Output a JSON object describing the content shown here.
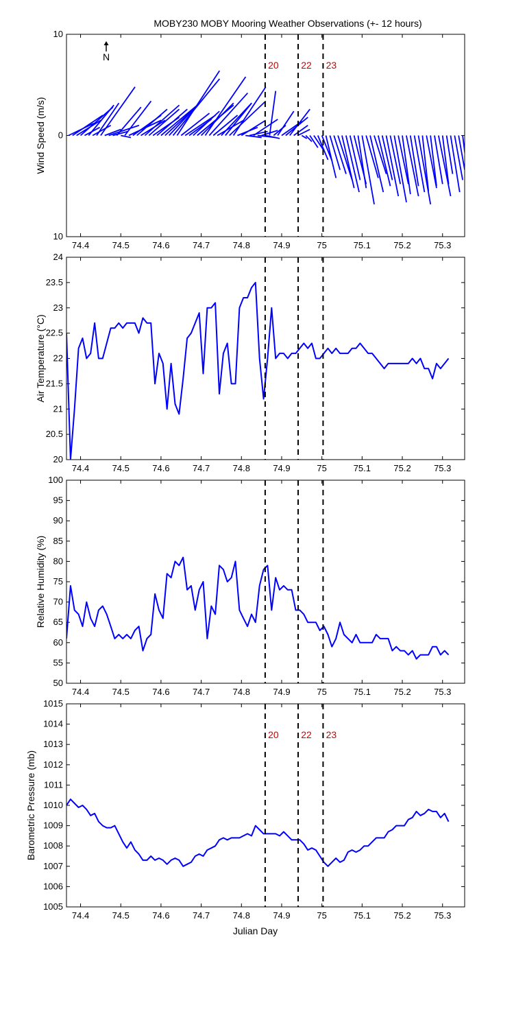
{
  "title": "MOBY230 MOBY Mooring Weather Observations (+- 12 hours)",
  "colors": {
    "series": "#0000ff",
    "marker_label": "#cc0000",
    "axis": "#000000",
    "background": "#ffffff"
  },
  "chart_data": [
    {
      "id": "wind",
      "type": "quiver",
      "title": "MOBY230 MOBY Mooring Weather Observations (+- 12 hours)",
      "xlabel": "",
      "ylabel": "Wind Speed (m/s)",
      "north_label": "N",
      "xlim": [
        74.365,
        75.355
      ],
      "ylim": [
        -10,
        10
      ],
      "x_ticks": [
        "74.4",
        "74.5",
        "74.6",
        "74.7",
        "74.8",
        "74.9",
        "75",
        "75.1",
        "75.2",
        "75.3"
      ],
      "y_ticks": [
        "10",
        "0",
        "10"
      ],
      "markers": [
        {
          "x": 74.859,
          "label": "20"
        },
        {
          "x": 74.941,
          "label": "22"
        },
        {
          "x": 75.003,
          "label": "23"
        }
      ],
      "vectors": [
        [
          74.37,
          2.5,
          1.2
        ],
        [
          74.38,
          3.0,
          2.0
        ],
        [
          74.39,
          2.4,
          1.5
        ],
        [
          74.4,
          3.2,
          2.8
        ],
        [
          74.41,
          1.5,
          0.8
        ],
        [
          74.42,
          2.5,
          3.0
        ],
        [
          74.43,
          1.8,
          1.0
        ],
        [
          74.44,
          2.2,
          3.2
        ],
        [
          74.45,
          3.4,
          4.8
        ],
        [
          74.46,
          1.6,
          0.6
        ],
        [
          74.47,
          3.0,
          1.0
        ],
        [
          74.48,
          1.5,
          0.4
        ],
        [
          74.49,
          2.4,
          2.8
        ],
        [
          74.5,
          1.0,
          -0.2
        ],
        [
          74.51,
          2.6,
          3.4
        ],
        [
          74.52,
          3.2,
          1.5
        ],
        [
          74.53,
          2.8,
          2.0
        ],
        [
          74.54,
          3.0,
          2.6
        ],
        [
          74.55,
          2.4,
          1.5
        ],
        [
          74.56,
          3.4,
          3.0
        ],
        [
          74.57,
          3.0,
          2.6
        ],
        [
          74.58,
          2.6,
          1.8
        ],
        [
          74.59,
          3.0,
          2.6
        ],
        [
          74.6,
          3.6,
          3.0
        ],
        [
          74.61,
          2.6,
          2.4
        ],
        [
          74.62,
          3.0,
          3.2
        ],
        [
          74.63,
          4.6,
          5.6
        ],
        [
          74.64,
          4.2,
          6.4
        ],
        [
          74.65,
          2.8,
          2.2
        ],
        [
          74.66,
          3.0,
          2.0
        ],
        [
          74.67,
          2.2,
          1.6
        ],
        [
          74.68,
          2.6,
          2.4
        ],
        [
          74.69,
          3.6,
          3.0
        ],
        [
          74.7,
          3.2,
          3.2
        ],
        [
          74.71,
          4.0,
          5.8
        ],
        [
          74.72,
          3.8,
          4.2
        ],
        [
          74.73,
          2.4,
          2.0
        ],
        [
          74.74,
          2.6,
          1.5
        ],
        [
          74.75,
          3.0,
          3.2
        ],
        [
          74.76,
          2.6,
          3.2
        ],
        [
          74.77,
          3.6,
          3.4
        ],
        [
          74.78,
          3.2,
          4.8
        ],
        [
          74.79,
          2.0,
          0.8
        ],
        [
          74.8,
          2.4,
          1.5
        ],
        [
          74.81,
          1.6,
          -0.2
        ],
        [
          74.82,
          1.8,
          0.4
        ],
        [
          74.83,
          2.4,
          1.6
        ],
        [
          74.84,
          1.8,
          -0.2
        ],
        [
          74.85,
          1.6,
          0.5
        ],
        [
          74.86,
          1.4,
          -0.3
        ],
        [
          74.87,
          0.6,
          4.4
        ],
        [
          74.88,
          1.2,
          1.0
        ],
        [
          74.89,
          1.6,
          2.4
        ],
        [
          74.9,
          2.0,
          1.4
        ],
        [
          74.91,
          2.2,
          1.8
        ],
        [
          74.92,
          2.0,
          2.6
        ],
        [
          74.93,
          1.4,
          1.0
        ],
        [
          74.94,
          1.2,
          0.6
        ],
        [
          74.95,
          0.5,
          -0.3
        ],
        [
          74.96,
          0.6,
          -0.6
        ],
        [
          74.97,
          0.8,
          -1.2
        ],
        [
          74.98,
          1.0,
          -1.5
        ],
        [
          74.99,
          1.0,
          -2.4
        ],
        [
          75.0,
          1.0,
          -2.5
        ],
        [
          75.01,
          1.0,
          -4.2
        ],
        [
          75.02,
          1.0,
          -3.4
        ],
        [
          75.03,
          1.2,
          -3.8
        ],
        [
          75.04,
          1.4,
          -4.4
        ],
        [
          75.05,
          1.2,
          -5.2
        ],
        [
          75.06,
          1.3,
          -5.6
        ],
        [
          75.07,
          1.0,
          -4.4
        ],
        [
          75.08,
          1.2,
          -4.8
        ],
        [
          75.09,
          0.8,
          -5.2
        ],
        [
          75.1,
          1.2,
          -6.8
        ],
        [
          75.11,
          1.2,
          -4.2
        ],
        [
          75.12,
          1.3,
          -5.6
        ],
        [
          75.13,
          1.2,
          -3.8
        ],
        [
          75.14,
          1.2,
          -5.0
        ],
        [
          75.15,
          1.0,
          -4.4
        ],
        [
          75.16,
          1.2,
          -6.0
        ],
        [
          75.17,
          1.0,
          -4.8
        ],
        [
          75.18,
          1.2,
          -6.6
        ],
        [
          75.19,
          1.0,
          -4.8
        ],
        [
          75.2,
          0.8,
          -5.8
        ],
        [
          75.21,
          1.2,
          -6.0
        ],
        [
          75.22,
          0.8,
          -5.0
        ],
        [
          75.23,
          1.0,
          -5.6
        ],
        [
          75.24,
          1.2,
          -6.8
        ],
        [
          75.25,
          0.6,
          -5.5
        ],
        [
          75.26,
          1.0,
          -5.2
        ],
        [
          75.27,
          0.6,
          -5.0
        ],
        [
          75.28,
          0.8,
          -4.8
        ],
        [
          75.29,
          1.2,
          -6.0
        ],
        [
          75.3,
          0.6,
          -4.8
        ],
        [
          75.31,
          0.6,
          -3.8
        ],
        [
          75.32,
          0.9,
          -5.6
        ],
        [
          75.33,
          0.8,
          -4.4
        ],
        [
          75.34,
          0.6,
          -3.4
        ],
        [
          75.35,
          0.6,
          -4.8
        ]
      ]
    },
    {
      "id": "airtemp",
      "type": "line",
      "title": "",
      "xlabel": "",
      "ylabel": "Air Temperature (°C)",
      "xlim": [
        74.365,
        75.355
      ],
      "ylim": [
        20,
        24
      ],
      "x_ticks": [
        "74.4",
        "74.5",
        "74.6",
        "74.7",
        "74.8",
        "74.9",
        "75",
        "75.1",
        "75.2",
        "75.3"
      ],
      "y_ticks": [
        "20",
        "20.5",
        "21",
        "21.5",
        "22",
        "22.5",
        "23",
        "23.5",
        "24"
      ],
      "markers": [
        {
          "x": 74.859,
          "label": ""
        },
        {
          "x": 74.941,
          "label": ""
        },
        {
          "x": 75.003,
          "label": ""
        }
      ],
      "series": [
        {
          "x_start": 74.365,
          "dx": 0.01,
          "values": [
            22.5,
            20.0,
            21.0,
            22.2,
            22.4,
            22.0,
            22.1,
            22.7,
            22.0,
            22.0,
            22.3,
            22.6,
            22.6,
            22.7,
            22.6,
            22.7,
            22.7,
            22.7,
            22.5,
            22.8,
            22.7,
            22.7,
            21.5,
            22.1,
            21.9,
            21.0,
            21.9,
            21.1,
            20.9,
            21.6,
            22.4,
            22.5,
            22.7,
            22.9,
            21.7,
            23.0,
            23.0,
            23.1,
            21.3,
            22.1,
            22.3,
            21.5,
            21.5,
            23.0,
            23.2,
            23.2,
            23.4,
            23.5,
            22.0,
            21.2,
            22.0,
            23.0,
            22.0,
            22.1,
            22.1,
            22.0,
            22.1,
            22.1,
            22.2,
            22.3,
            22.2,
            22.3,
            22.0,
            22.0,
            22.1,
            22.2,
            22.1,
            22.2,
            22.1,
            22.1,
            22.1,
            22.2,
            22.2,
            22.3,
            22.2,
            22.1,
            22.1,
            22.0,
            21.9,
            21.8,
            21.9,
            21.9,
            21.9,
            21.9,
            21.9,
            21.9,
            22.0,
            21.9,
            22.0,
            21.8,
            21.8,
            21.6,
            21.9,
            21.8,
            21.9,
            22.0
          ]
        }
      ]
    },
    {
      "id": "rh",
      "type": "line",
      "title": "",
      "xlabel": "",
      "ylabel": "Relative Humidity (%)",
      "xlim": [
        74.365,
        75.355
      ],
      "ylim": [
        50,
        100
      ],
      "x_ticks": [
        "74.4",
        "74.5",
        "74.6",
        "74.7",
        "74.8",
        "74.9",
        "75",
        "75.1",
        "75.2",
        "75.3"
      ],
      "y_ticks": [
        "50",
        "55",
        "60",
        "65",
        "70",
        "75",
        "80",
        "85",
        "90",
        "95",
        "100"
      ],
      "markers": [
        {
          "x": 74.859,
          "label": ""
        },
        {
          "x": 74.941,
          "label": ""
        },
        {
          "x": 75.003,
          "label": ""
        }
      ],
      "series": [
        {
          "x_start": 74.365,
          "dx": 0.01,
          "values": [
            61,
            74,
            68,
            67,
            64,
            70,
            66,
            64,
            68,
            69,
            67,
            64,
            61,
            62,
            61,
            62,
            61,
            63,
            64,
            58,
            61,
            62,
            72,
            68,
            66,
            77,
            76,
            80,
            79,
            81,
            73,
            74,
            68,
            73,
            75,
            61,
            69,
            67,
            79,
            78,
            75,
            76,
            80,
            68,
            66,
            64,
            67,
            65,
            74,
            78,
            79,
            68,
            76,
            73,
            74,
            73,
            73,
            68,
            68,
            67,
            65,
            65,
            65,
            63,
            64,
            62,
            59,
            61,
            65,
            62,
            61,
            60,
            62,
            60,
            60,
            60,
            60,
            62,
            61,
            61,
            61,
            58,
            59,
            58,
            58,
            57,
            58,
            56,
            57,
            57,
            57,
            59,
            59,
            57,
            58,
            57
          ]
        }
      ]
    },
    {
      "id": "baro",
      "type": "line",
      "title": "",
      "xlabel": "Julian Day",
      "ylabel": "Barometric Pressure (mb)",
      "xlim": [
        74.365,
        75.355
      ],
      "ylim": [
        1005,
        1015
      ],
      "x_ticks": [
        "74.4",
        "74.5",
        "74.6",
        "74.7",
        "74.8",
        "74.9",
        "75",
        "75.1",
        "75.2",
        "75.3"
      ],
      "y_ticks": [
        "1005",
        "1006",
        "1007",
        "1008",
        "1009",
        "1010",
        "1011",
        "1012",
        "1013",
        "1014",
        "1015"
      ],
      "markers": [
        {
          "x": 74.859,
          "label": "20"
        },
        {
          "x": 74.941,
          "label": "22"
        },
        {
          "x": 75.003,
          "label": "23"
        }
      ],
      "series": [
        {
          "x_start": 74.365,
          "dx": 0.01,
          "values": [
            1010.0,
            1010.3,
            1010.1,
            1009.9,
            1010.0,
            1009.8,
            1009.5,
            1009.6,
            1009.2,
            1009.0,
            1008.9,
            1008.9,
            1009.0,
            1008.6,
            1008.2,
            1007.9,
            1008.2,
            1007.8,
            1007.6,
            1007.3,
            1007.3,
            1007.5,
            1007.3,
            1007.4,
            1007.3,
            1007.1,
            1007.3,
            1007.4,
            1007.3,
            1007.0,
            1007.1,
            1007.2,
            1007.5,
            1007.6,
            1007.5,
            1007.8,
            1007.9,
            1008.0,
            1008.3,
            1008.4,
            1008.3,
            1008.4,
            1008.4,
            1008.4,
            1008.5,
            1008.6,
            1008.5,
            1009.0,
            1008.8,
            1008.6,
            1008.6,
            1008.6,
            1008.6,
            1008.5,
            1008.7,
            1008.5,
            1008.3,
            1008.3,
            1008.3,
            1008.1,
            1007.8,
            1007.9,
            1007.8,
            1007.5,
            1007.2,
            1007.0,
            1007.2,
            1007.4,
            1007.2,
            1007.3,
            1007.7,
            1007.8,
            1007.7,
            1007.8,
            1008.0,
            1008.0,
            1008.2,
            1008.4,
            1008.4,
            1008.4,
            1008.7,
            1008.8,
            1009.0,
            1009.0,
            1009.0,
            1009.3,
            1009.4,
            1009.7,
            1009.5,
            1009.6,
            1009.8,
            1009.7,
            1009.7,
            1009.4,
            1009.6,
            1009.2
          ]
        }
      ]
    }
  ]
}
